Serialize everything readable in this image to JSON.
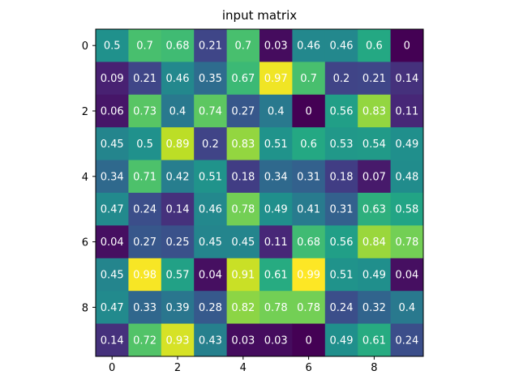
{
  "chart_data": {
    "type": "heatmap",
    "title": "input matrix",
    "colormap": "viridis",
    "vmin": 0.0,
    "vmax": 0.99,
    "x_ticks": [
      "0",
      "2",
      "4",
      "6",
      "8"
    ],
    "y_ticks": [
      "0",
      "2",
      "4",
      "6",
      "8"
    ],
    "annotation_color": "#ffffff",
    "values": [
      [
        0.5,
        0.7,
        0.68,
        0.21,
        0.7,
        0.03,
        0.46,
        0.46,
        0.6,
        0.0
      ],
      [
        0.09,
        0.21,
        0.46,
        0.35,
        0.67,
        0.97,
        0.7,
        0.2,
        0.21,
        0.14
      ],
      [
        0.06,
        0.73,
        0.4,
        0.74,
        0.27,
        0.4,
        0.0,
        0.56,
        0.83,
        0.11
      ],
      [
        0.45,
        0.5,
        0.89,
        0.2,
        0.83,
        0.51,
        0.6,
        0.53,
        0.54,
        0.49
      ],
      [
        0.34,
        0.71,
        0.42,
        0.51,
        0.18,
        0.34,
        0.31,
        0.18,
        0.07,
        0.48
      ],
      [
        0.47,
        0.24,
        0.14,
        0.46,
        0.78,
        0.49,
        0.41,
        0.31,
        0.63,
        0.58
      ],
      [
        0.04,
        0.27,
        0.25,
        0.45,
        0.45,
        0.11,
        0.68,
        0.56,
        0.84,
        0.78
      ],
      [
        0.45,
        0.98,
        0.57,
        0.04,
        0.91,
        0.61,
        0.99,
        0.51,
        0.49,
        0.04
      ],
      [
        0.47,
        0.33,
        0.39,
        0.28,
        0.82,
        0.78,
        0.78,
        0.24,
        0.32,
        0.4
      ],
      [
        0.14,
        0.72,
        0.93,
        0.43,
        0.03,
        0.03,
        0.0,
        0.49,
        0.61,
        0.24
      ]
    ]
  }
}
